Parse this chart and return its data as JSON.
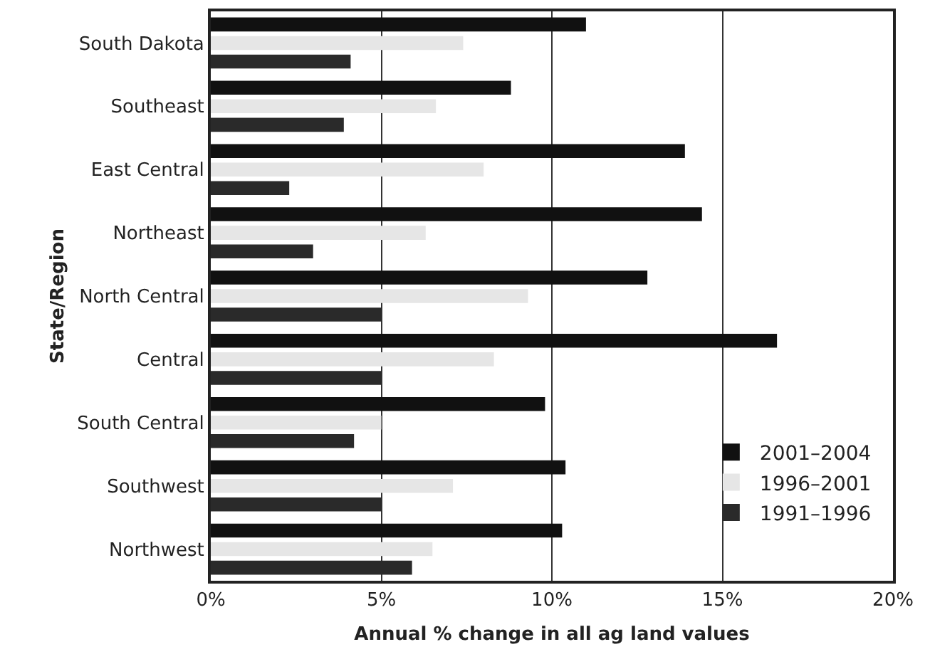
{
  "chart_data": {
    "type": "bar",
    "orientation": "horizontal",
    "xlabel": "Annual % change in all ag land values",
    "ylabel": "State/Region",
    "categories": [
      "South Dakota",
      "Southeast",
      "East Central",
      "Northeast",
      "North Central",
      "Central",
      "South Central",
      "Southwest",
      "Northwest"
    ],
    "series": [
      {
        "name": "2001–2004",
        "color": "#111111",
        "values": [
          11.0,
          8.8,
          13.9,
          14.4,
          12.8,
          16.6,
          9.8,
          10.4,
          10.3
        ]
      },
      {
        "name": "1996–2001",
        "color": "#e6e6e6",
        "values": [
          7.4,
          6.6,
          8.0,
          6.3,
          9.3,
          8.3,
          5.0,
          7.1,
          6.5
        ]
      },
      {
        "name": "1991–1996",
        "color": "#2a2a2a",
        "values": [
          4.1,
          3.9,
          2.3,
          3.0,
          5.0,
          5.0,
          4.2,
          5.0,
          5.9
        ]
      }
    ],
    "xlim": [
      0,
      20
    ],
    "xticks": [
      {
        "value": 0,
        "label": "0%"
      },
      {
        "value": 5,
        "label": "5%"
      },
      {
        "value": 10,
        "label": "10%"
      },
      {
        "value": 15,
        "label": "15%"
      },
      {
        "value": 20,
        "label": "20%"
      }
    ],
    "grid": "x",
    "legend": "bottom right"
  }
}
